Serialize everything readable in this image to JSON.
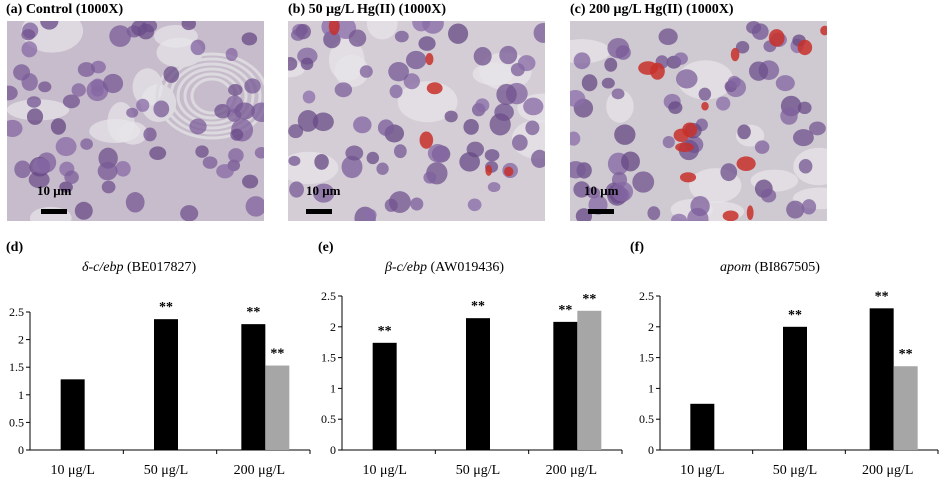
{
  "panels": {
    "a": "(a) Control (1000X)",
    "b": "(b) 50 μg/L Hg(II) (1000X)",
    "c": "(c) 200 μg/L Hg(II) (1000X)",
    "d": "(d)",
    "e": "(e)",
    "f": "(f)"
  },
  "scale_label": "10 μm",
  "colors": {
    "series1": "#000000",
    "series2": "#a6a6a6"
  },
  "chart_data": [
    {
      "type": "bar",
      "title_gene": "δ-c/ebp",
      "title_id": " (BE017827)",
      "categories": [
        "10 μg/L",
        "50 μg/L",
        "200 μg/L"
      ],
      "ylim": [
        0,
        2.5
      ],
      "yticks": [
        "0",
        "0.5",
        "1",
        "1.5",
        "2",
        "2.5"
      ],
      "series": [
        {
          "values": [
            1.28,
            2.37,
            2.28
          ],
          "labels": [
            "",
            "**",
            "**"
          ]
        },
        {
          "values": [
            null,
            null,
            1.53
          ],
          "labels": [
            "",
            "",
            "**"
          ]
        }
      ]
    },
    {
      "type": "bar",
      "title_gene": "β-c/ebp",
      "title_id": " (AW019436)",
      "categories": [
        "10 μg/L",
        "50 μg/L",
        "200 μg/L"
      ],
      "ylim": [
        0,
        2.5
      ],
      "yticks": [
        "0",
        "0.5",
        "1",
        "1.5",
        "2",
        "2.5"
      ],
      "series": [
        {
          "values": [
            1.74,
            2.14,
            2.08
          ],
          "labels": [
            "**",
            "**",
            "**"
          ]
        },
        {
          "values": [
            null,
            null,
            2.26
          ],
          "labels": [
            "",
            "",
            "**"
          ]
        }
      ]
    },
    {
      "type": "bar",
      "title_gene": "apom",
      "title_id": " (BI867505)",
      "categories": [
        "10 μg/L",
        "50 μg/L",
        "200 μg/L"
      ],
      "ylim": [
        0,
        2.5
      ],
      "yticks": [
        "0",
        "0.5",
        "1",
        "1.5",
        "2",
        "2.5"
      ],
      "series": [
        {
          "values": [
            0.75,
            2.0,
            2.3
          ],
          "labels": [
            "",
            "**",
            "**"
          ]
        },
        {
          "values": [
            null,
            null,
            1.36
          ],
          "labels": [
            "",
            "",
            "**"
          ]
        }
      ]
    }
  ]
}
